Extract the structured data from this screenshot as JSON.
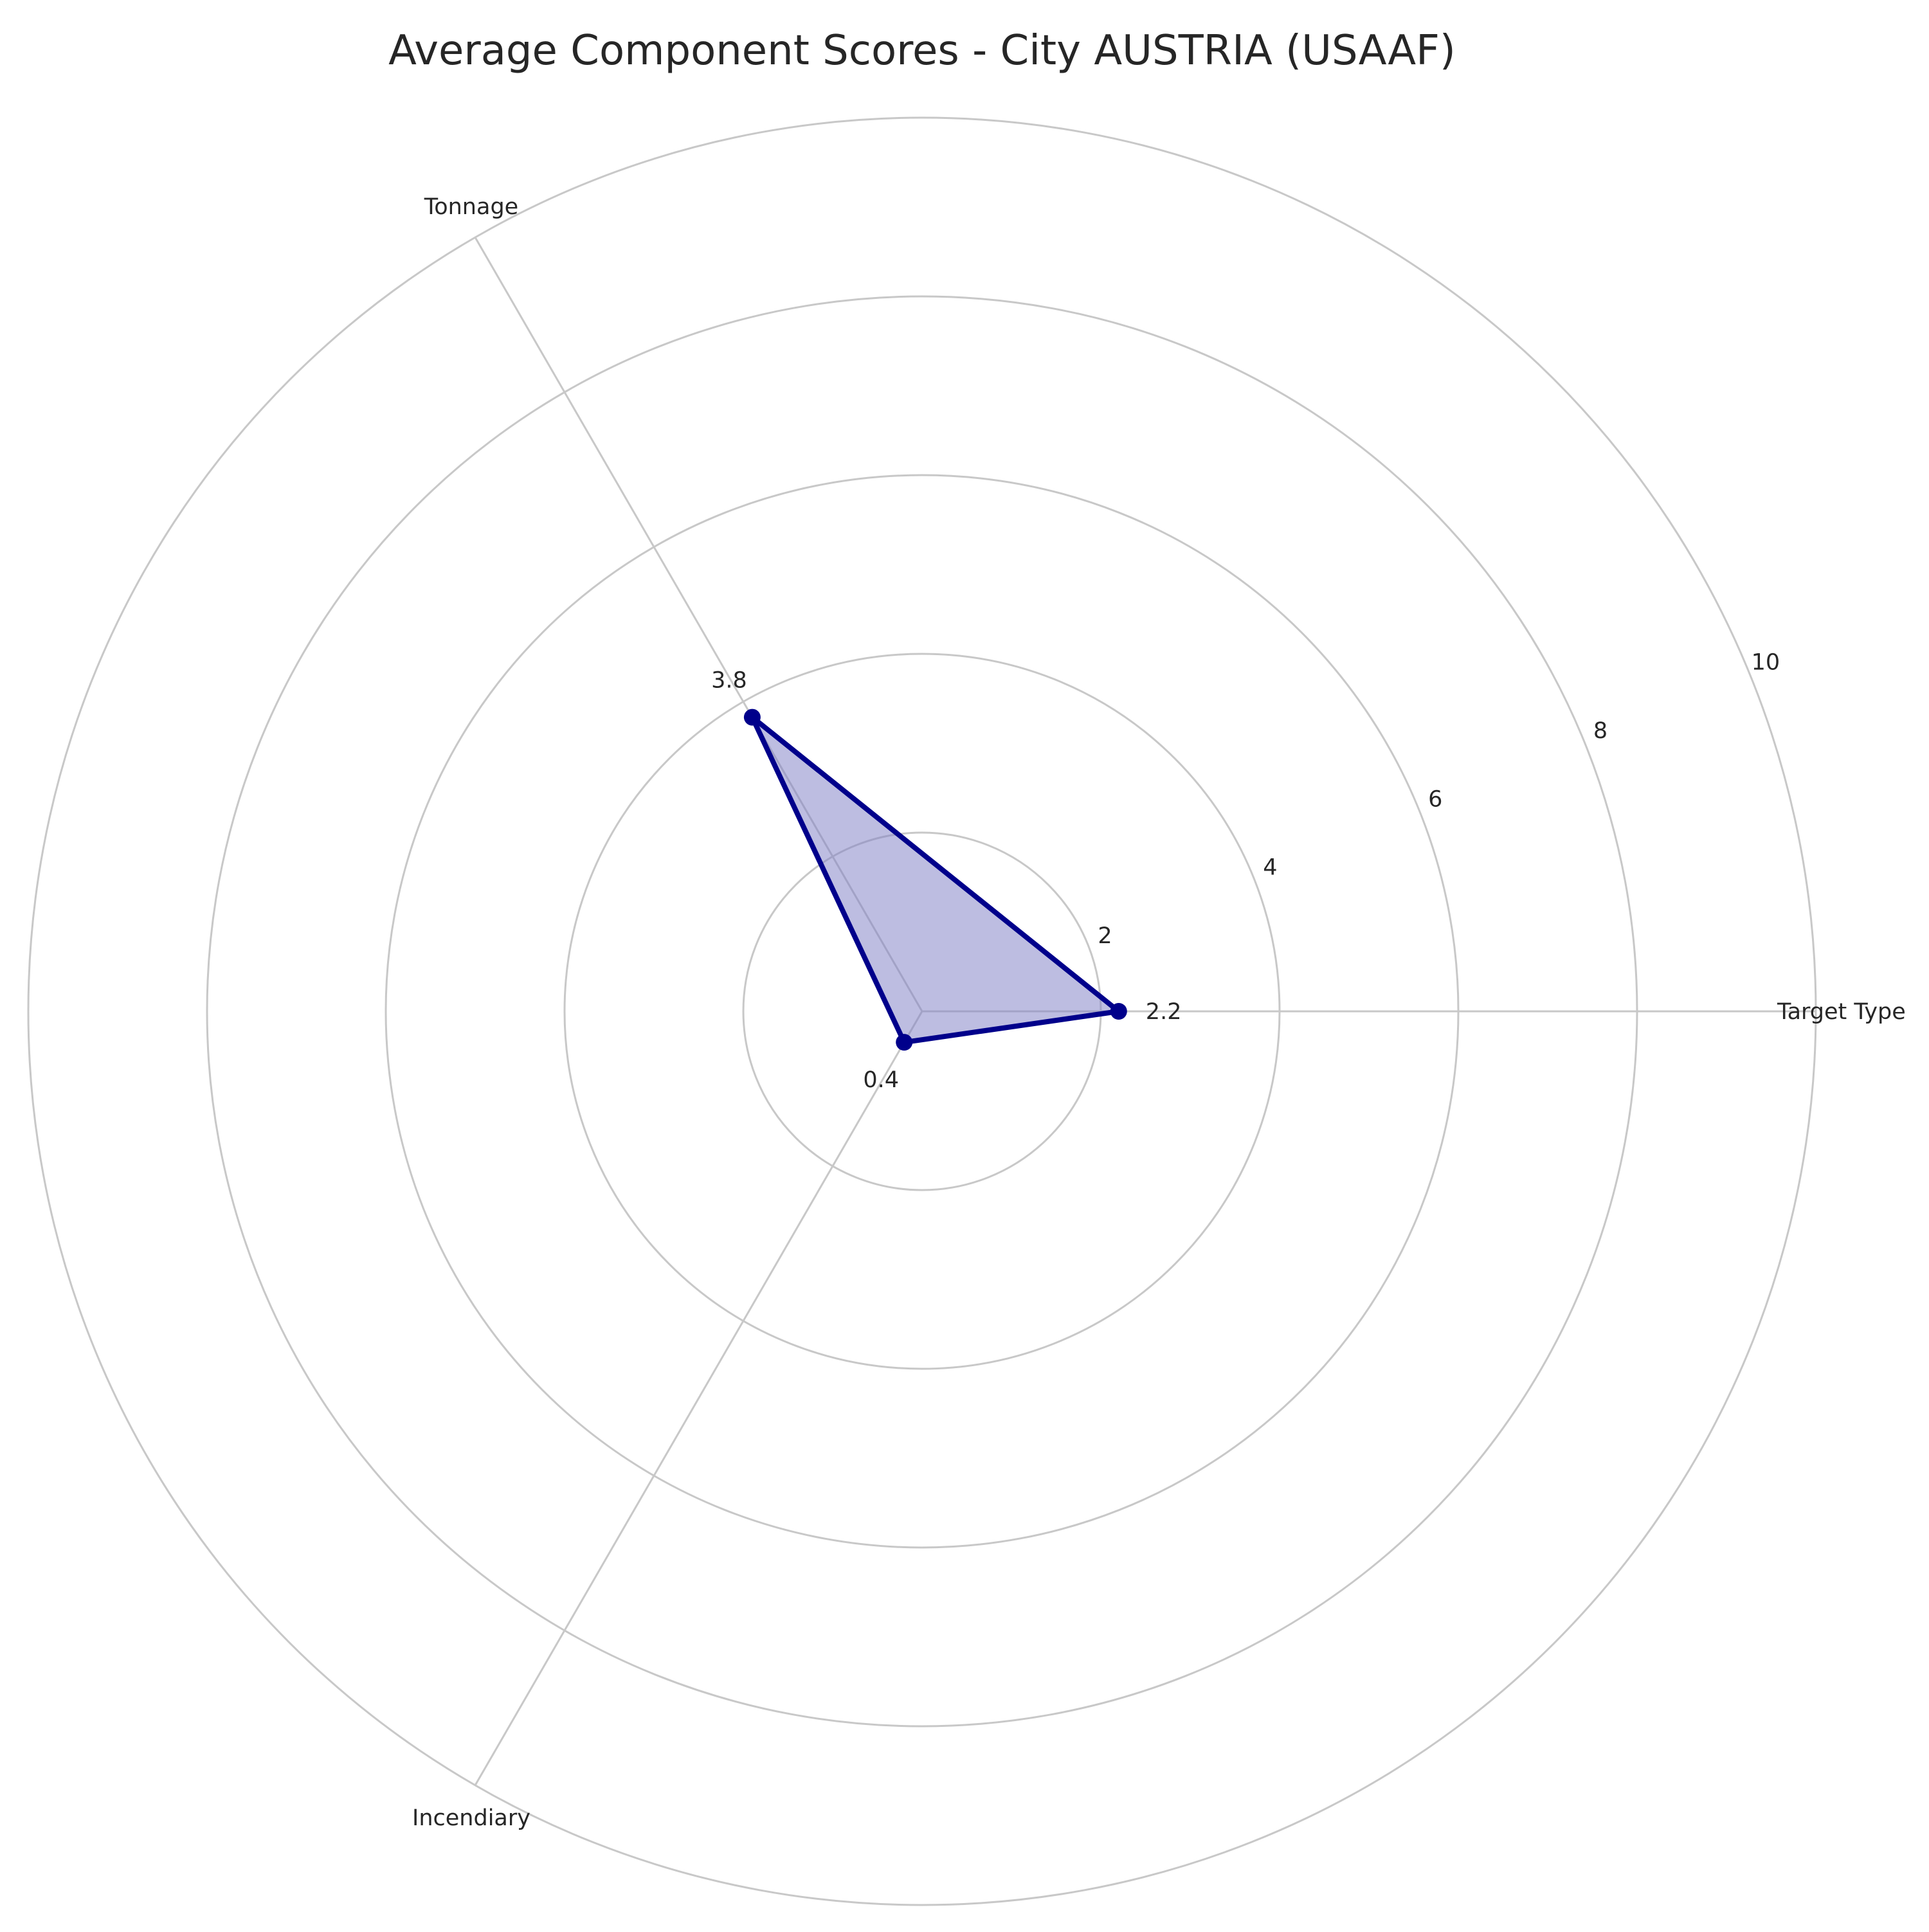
{
  "chart_data": {
    "type": "radar",
    "title": "Average Component Scores - City AUSTRIA (USAAF)",
    "categories": [
      "Target Type",
      "Tonnage",
      "Incendiary"
    ],
    "series": [
      {
        "values": [
          2.2,
          3.8,
          0.4
        ]
      }
    ],
    "data_labels": [
      "2.2",
      "3.8",
      "0.4"
    ],
    "radial_ticks": [
      "2",
      "4",
      "6",
      "8",
      "10"
    ],
    "r_range": [
      0,
      10
    ],
    "grid": true,
    "legend": "none",
    "colors": {
      "line": "#00008b",
      "fill": "#7b7bc4",
      "grid": "#c8c8c8",
      "text": "#262626"
    }
  }
}
